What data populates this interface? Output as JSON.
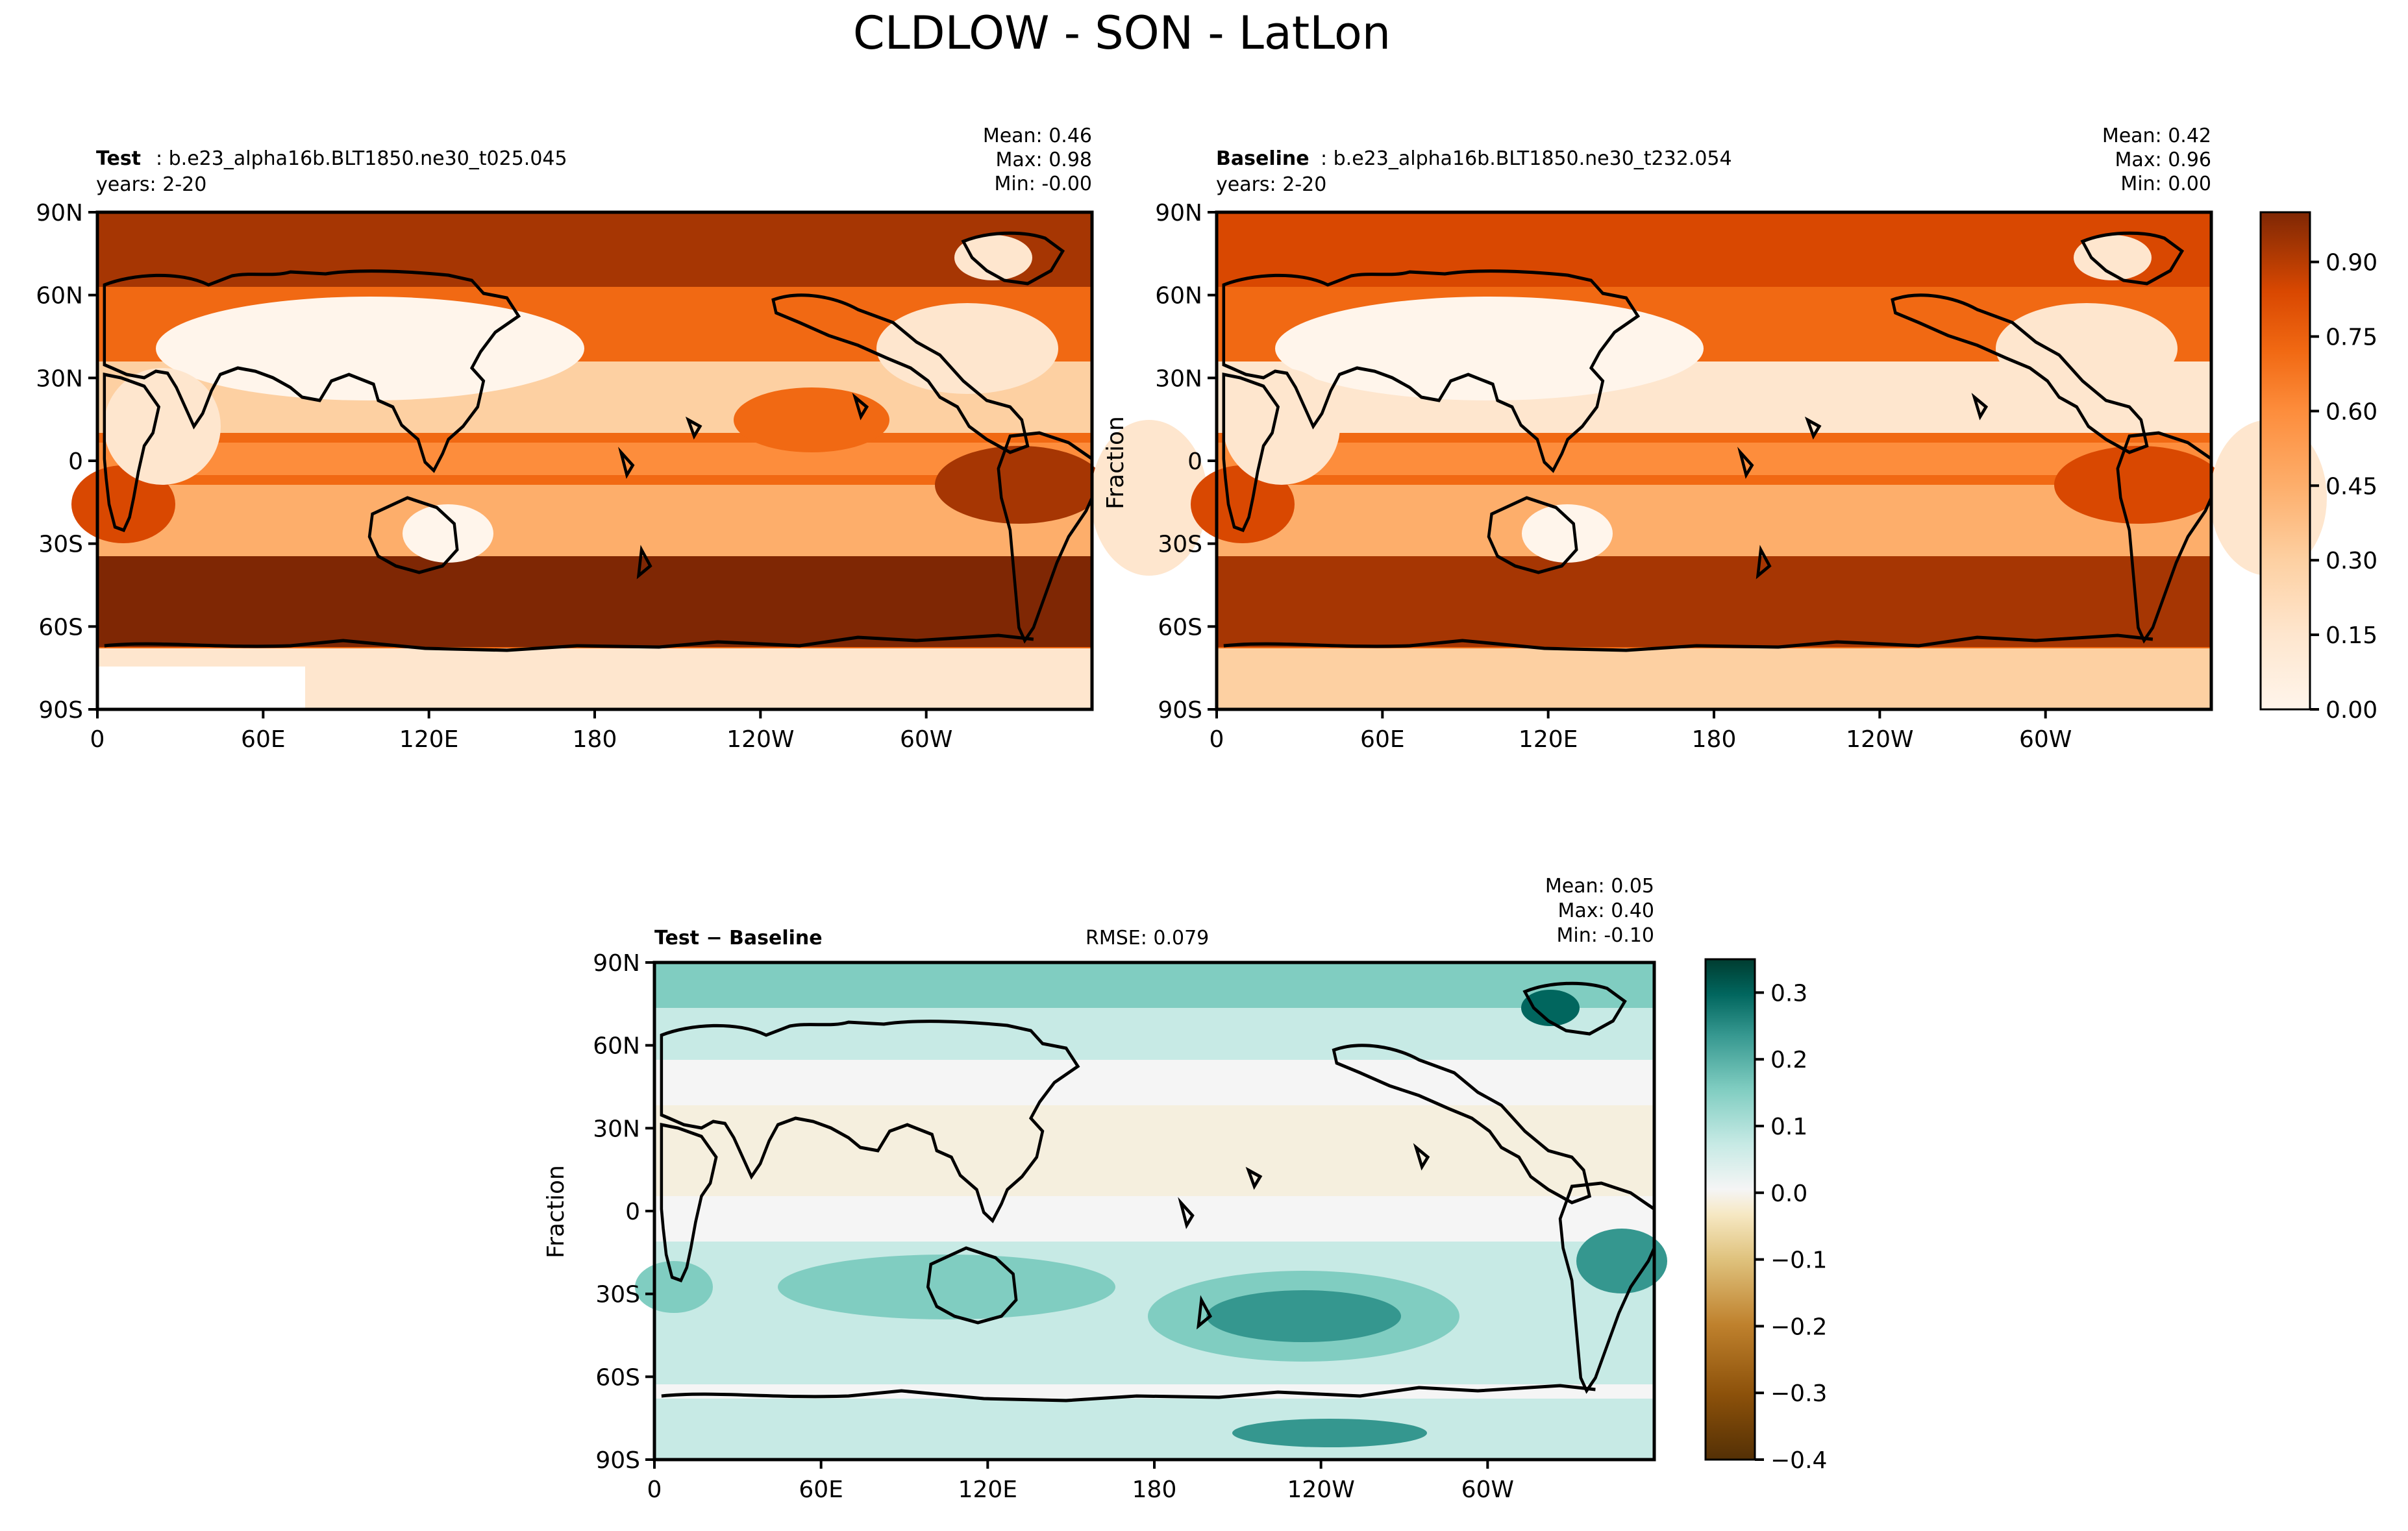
{
  "figure": {
    "title": "CLDLOW - SON - LatLon"
  },
  "chart_data": [
    {
      "type": "heatmap",
      "panel_label": "Test",
      "case_name": ": b.e23_alpha16b.BLT1850.ne30_t025.045",
      "years": "years: 2-20",
      "stats": {
        "mean": "Mean:  0.46",
        "max": "Max:  0.98",
        "min": "Min: -0.00"
      },
      "ylabel": "",
      "xticks": [
        "0",
        "60E",
        "120E",
        "180",
        "120W",
        "60W"
      ],
      "yticks": [
        "90N",
        "60N",
        "30N",
        "0",
        "30S",
        "60S",
        "90S"
      ],
      "xlim": [
        0,
        360
      ],
      "ylim": [
        -90,
        90
      ],
      "color_scale": "Oranges",
      "values_summary": {
        "mean": 0.46,
        "max": 0.98,
        "min": -0.0
      }
    },
    {
      "type": "heatmap",
      "panel_label": "Baseline",
      "case_name": ": b.e23_alpha16b.BLT1850.ne30_t232.054",
      "years": "years: 2-20",
      "stats": {
        "mean": "Mean:  0.42",
        "max": "Max:  0.96",
        "min": "Min:  0.00"
      },
      "ylabel": "Fraction",
      "xticks": [
        "0",
        "60E",
        "120E",
        "180",
        "120W",
        "60W"
      ],
      "yticks": [
        "90N",
        "60N",
        "30N",
        "0",
        "30S",
        "60S",
        "90S"
      ],
      "xlim": [
        0,
        360
      ],
      "ylim": [
        -90,
        90
      ],
      "color_scale": "Oranges",
      "values_summary": {
        "mean": 0.42,
        "max": 0.96,
        "min": 0.0
      },
      "colorbar": {
        "ticks": [
          "0.90",
          "0.75",
          "0.60",
          "0.45",
          "0.30",
          "0.15",
          "0.00"
        ],
        "range": [
          0.0,
          1.0
        ]
      }
    },
    {
      "type": "heatmap",
      "panel_label": "Test − Baseline",
      "rmse": "RMSE: 0.079",
      "stats": {
        "mean": "Mean:  0.05",
        "max": "Max:  0.40",
        "min": "Min: -0.10"
      },
      "ylabel": "Fraction",
      "xticks": [
        "0",
        "60E",
        "120E",
        "180",
        "120W",
        "60W"
      ],
      "yticks": [
        "90N",
        "60N",
        "30N",
        "0",
        "30S",
        "60S",
        "90S"
      ],
      "xlim": [
        0,
        360
      ],
      "ylim": [
        -90,
        90
      ],
      "color_scale": "BrBG",
      "values_summary": {
        "mean": 0.05,
        "max": 0.4,
        "min": -0.1,
        "rmse": 0.079
      },
      "colorbar": {
        "ticks": [
          "0.3",
          "0.2",
          "0.1",
          "0.0",
          "−0.1",
          "−0.2",
          "−0.3",
          "−0.4"
        ],
        "range": [
          -0.4,
          0.35
        ]
      }
    }
  ],
  "colors": {
    "oranges": [
      "#fff5eb",
      "#fee6ce",
      "#fdd0a2",
      "#fdae6b",
      "#fd8d3c",
      "#f16913",
      "#d94801",
      "#a63603",
      "#7f2704"
    ],
    "diff": [
      "#543005",
      "#8c510a",
      "#bf812d",
      "#dfc27d",
      "#f6e8c3",
      "#f5f5f5",
      "#c7eae5",
      "#80cdc1",
      "#35978f",
      "#01665e",
      "#003c30"
    ],
    "land_line": "#000000"
  }
}
